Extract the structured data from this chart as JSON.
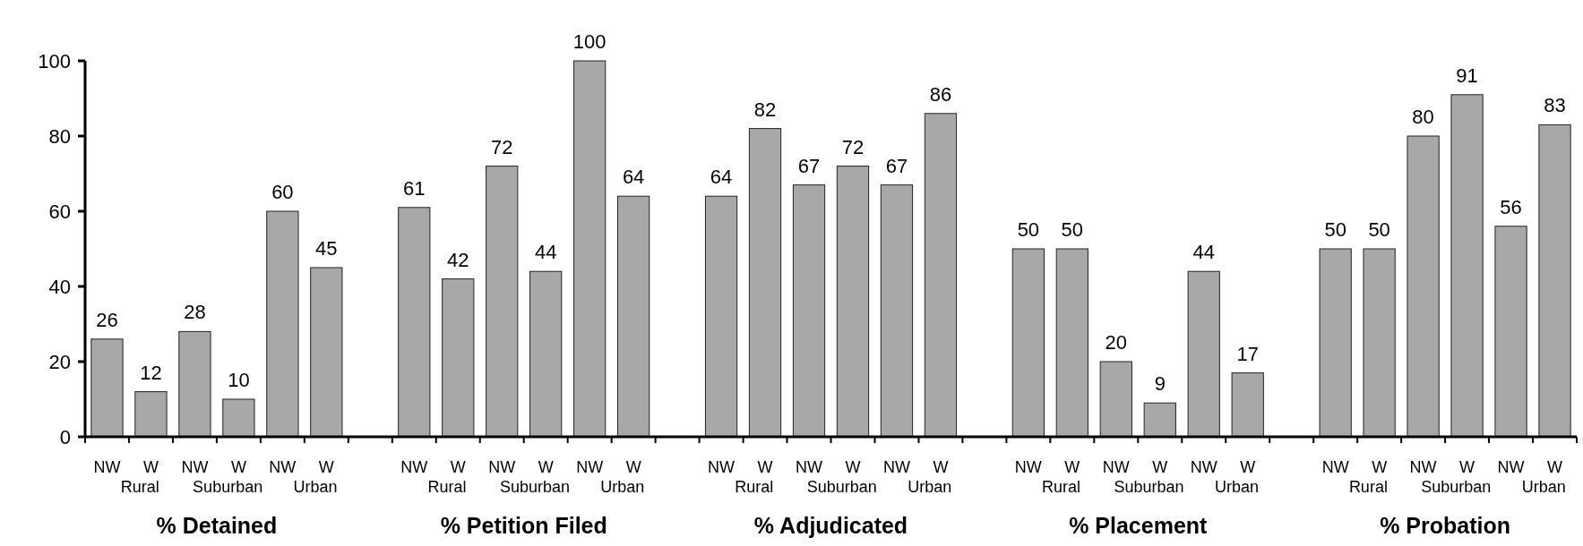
{
  "chart_data": {
    "type": "bar",
    "categories": [
      "NW",
      "W",
      "NW",
      "W",
      "NW",
      "W",
      null,
      "NW",
      "W",
      "NW",
      "W",
      "NW",
      "W",
      null,
      "NW",
      "W",
      "NW",
      "W",
      "NW",
      "W",
      null,
      "NW",
      "W",
      "NW",
      "W",
      "NW",
      "W",
      null,
      "NW",
      "W",
      "NW",
      "W",
      "NW",
      "W"
    ],
    "values": [
      26,
      12,
      28,
      10,
      60,
      45,
      null,
      61,
      42,
      72,
      44,
      100,
      64,
      null,
      64,
      82,
      67,
      72,
      67,
      86,
      null,
      50,
      50,
      20,
      9,
      44,
      17,
      null,
      50,
      50,
      80,
      91,
      56,
      83
    ],
    "color": "#a8a8a8",
    "ylim": [
      0,
      100
    ],
    "yticks": [
      0,
      20,
      40,
      60,
      80,
      100
    ],
    "data_labels": true,
    "annotations": [
      "Rural",
      "Suburban",
      "Urban",
      "Rural",
      "Suburban",
      "Urban",
      "Rural",
      "Suburban",
      "Urban",
      "Rural",
      "Suburban",
      "Urban",
      "Rural",
      "Suburban",
      "Urban",
      "% Detained",
      "% Petition Filed",
      "% Adjudicated",
      "% Placement",
      "% Probation"
    ]
  }
}
